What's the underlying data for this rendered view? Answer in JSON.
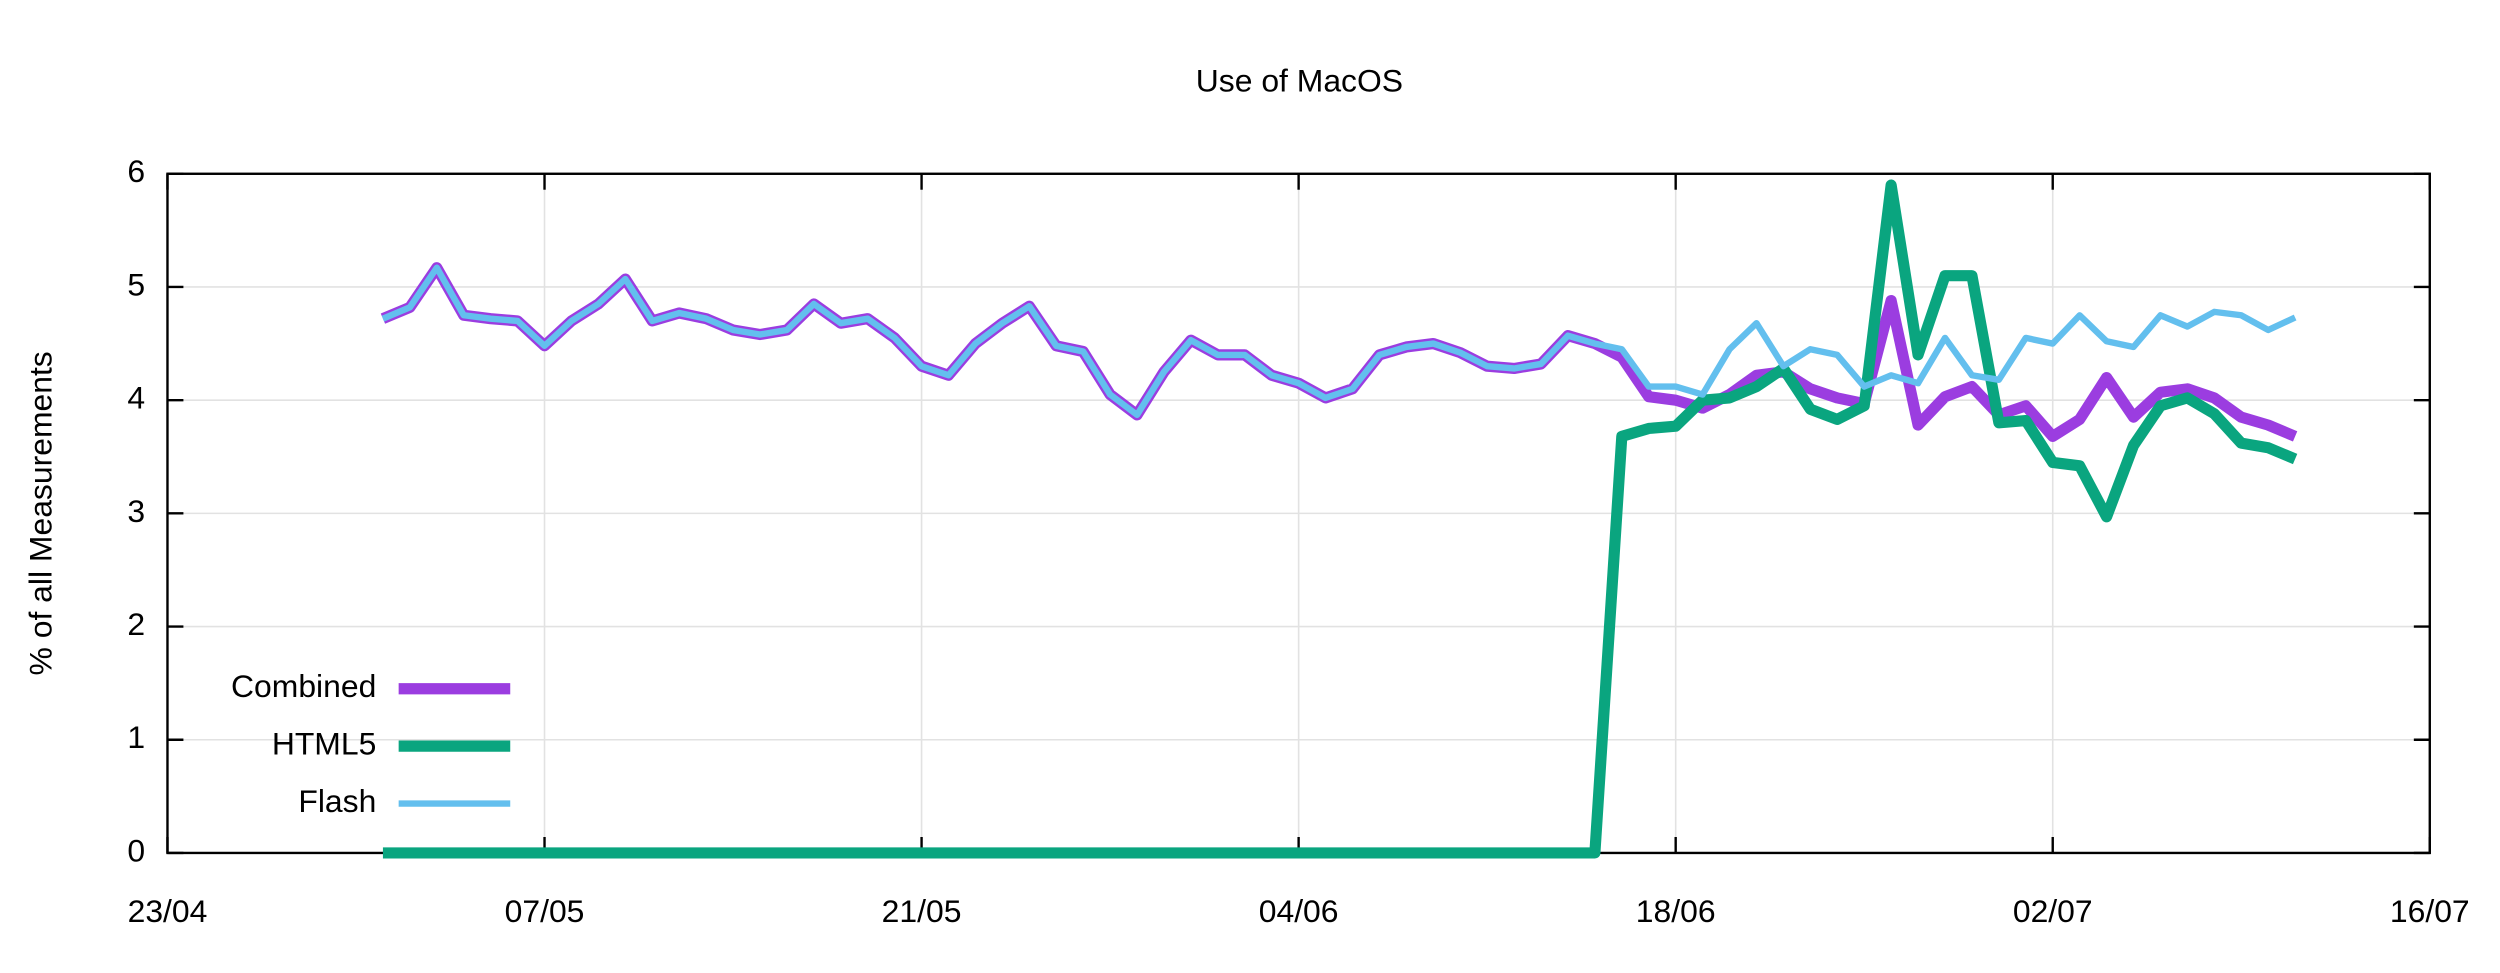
{
  "chart_data": {
    "type": "line",
    "title": "Use of MacOS",
    "y_label": "% of all Measurements",
    "x": [
      "01/05",
      "02/05",
      "03/05",
      "04/05",
      "05/05",
      "06/05",
      "07/05",
      "08/05",
      "09/05",
      "10/05",
      "11/05",
      "12/05",
      "13/05",
      "14/05",
      "15/05",
      "16/05",
      "17/05",
      "18/05",
      "19/05",
      "20/05",
      "21/05",
      "22/05",
      "23/05",
      "24/05",
      "25/05",
      "26/05",
      "27/05",
      "28/05",
      "29/05",
      "30/05",
      "31/05",
      "01/06",
      "02/06",
      "03/06",
      "04/06",
      "05/06",
      "06/06",
      "07/06",
      "08/06",
      "09/06",
      "10/06",
      "11/06",
      "12/06",
      "13/06",
      "14/06",
      "15/06",
      "16/06",
      "17/06",
      "18/06",
      "19/06",
      "20/06",
      "21/06",
      "22/06",
      "23/06",
      "24/06",
      "25/06",
      "26/06",
      "27/06",
      "28/06",
      "29/06",
      "30/06",
      "01/07",
      "02/07",
      "03/07",
      "04/07",
      "05/07",
      "06/07",
      "07/07",
      "08/07",
      "09/07",
      "10/07",
      "11/07"
    ],
    "series": [
      {
        "name": "Combined",
        "color": "#9b3de0",
        "width": 7,
        "values": [
          4.72,
          4.82,
          5.17,
          4.75,
          4.72,
          4.7,
          4.48,
          4.7,
          4.85,
          5.07,
          4.7,
          4.77,
          4.72,
          4.62,
          4.58,
          4.62,
          4.85,
          4.68,
          4.72,
          4.55,
          4.3,
          4.22,
          4.5,
          4.68,
          4.83,
          4.48,
          4.43,
          4.05,
          3.87,
          4.25,
          4.53,
          4.4,
          4.4,
          4.22,
          4.15,
          4.02,
          4.1,
          4.4,
          4.47,
          4.5,
          4.42,
          4.3,
          4.28,
          4.32,
          4.57,
          4.5,
          4.38,
          4.03,
          4.0,
          3.93,
          4.05,
          4.22,
          4.25,
          4.1,
          4.02,
          3.97,
          4.88,
          3.78,
          4.03,
          4.12,
          3.87,
          3.95,
          3.68,
          3.83,
          4.2,
          3.85,
          4.07,
          4.1,
          4.02,
          3.85,
          3.78,
          3.68
        ]
      },
      {
        "name": "HTML5",
        "color": "#0aa57f",
        "width": 7,
        "values": [
          0,
          0,
          0,
          0,
          0,
          0,
          0,
          0,
          0,
          0,
          0,
          0,
          0,
          0,
          0,
          0,
          0,
          0,
          0,
          0,
          0,
          0,
          0,
          0,
          0,
          0,
          0,
          0,
          0,
          0,
          0,
          0,
          0,
          0,
          0,
          0,
          0,
          0,
          0,
          0,
          0,
          0,
          0,
          0,
          0,
          0,
          3.68,
          3.75,
          3.77,
          4.0,
          4.02,
          4.12,
          4.28,
          3.92,
          3.83,
          3.95,
          5.9,
          4.4,
          5.1,
          5.1,
          3.8,
          3.82,
          3.45,
          3.42,
          2.97,
          3.6,
          3.95,
          4.02,
          3.88,
          3.62,
          3.58,
          3.48
        ]
      },
      {
        "name": "Flash",
        "color": "#63bfee",
        "width": 4,
        "values": [
          4.72,
          4.82,
          5.17,
          4.75,
          4.72,
          4.7,
          4.48,
          4.7,
          4.85,
          5.07,
          4.7,
          4.77,
          4.72,
          4.62,
          4.58,
          4.62,
          4.85,
          4.68,
          4.72,
          4.55,
          4.3,
          4.22,
          4.5,
          4.68,
          4.83,
          4.48,
          4.43,
          4.05,
          3.87,
          4.25,
          4.53,
          4.4,
          4.4,
          4.22,
          4.15,
          4.02,
          4.1,
          4.4,
          4.47,
          4.5,
          4.42,
          4.3,
          4.28,
          4.32,
          4.57,
          4.5,
          4.45,
          4.12,
          4.12,
          4.05,
          4.45,
          4.68,
          4.3,
          4.45,
          4.4,
          4.12,
          4.22,
          4.15,
          4.55,
          4.22,
          4.18,
          4.55,
          4.5,
          4.75,
          4.52,
          4.47,
          4.75,
          4.65,
          4.78,
          4.75,
          4.62,
          4.73
        ]
      }
    ],
    "xlim": [
      "23/04",
      "16/07"
    ],
    "xticks": [
      "23/04",
      "07/05",
      "21/05",
      "04/06",
      "18/06",
      "02/07",
      "16/07"
    ],
    "ylim": [
      0,
      6
    ],
    "yticks": [
      0,
      1,
      2,
      3,
      4,
      5,
      6
    ],
    "grid": true,
    "legend": "lower left"
  }
}
